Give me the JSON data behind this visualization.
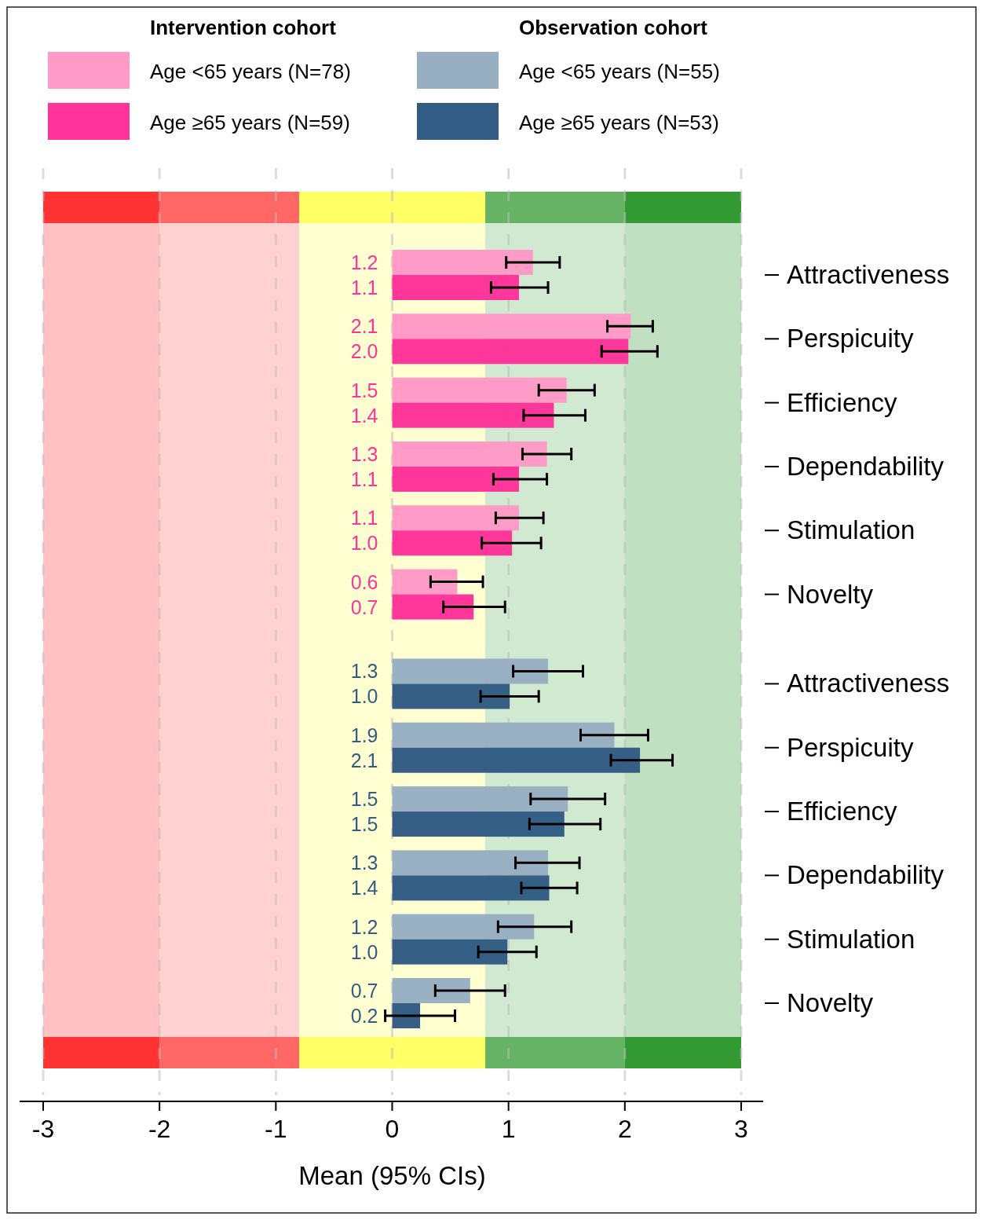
{
  "chart_data": {
    "type": "bar",
    "orientation": "horizontal",
    "xlabel": "Mean (95% CIs)",
    "annotations": [
      "Intervention cohort",
      "Observation cohort"
    ],
    "categories": [
      "Attractiveness",
      "Perspicuity",
      "Efficiency",
      "Dependability",
      "Stimulation",
      "Novelty",
      "Attractiveness",
      "Perspicuity",
      "Efficiency",
      "Dependability",
      "Stimulation",
      "Novelty"
    ],
    "series": [
      {
        "name": "Age <65 years (N=78)",
        "color": "#ff99c6",
        "values": [
          1.21,
          2.05,
          1.5,
          1.33,
          1.09,
          0.56,
          null,
          null,
          null,
          null,
          null,
          null
        ],
        "value_labels": [
          "1.2",
          "2.1",
          "1.5",
          "1.3",
          "1.1",
          "0.6",
          null,
          null,
          null,
          null,
          null,
          null
        ],
        "errors": [
          [
            0.98,
            1.44
          ],
          [
            1.85,
            2.24
          ],
          [
            1.26,
            1.74
          ],
          [
            1.12,
            1.54
          ],
          [
            0.89,
            1.3
          ],
          [
            0.33,
            0.78
          ],
          null,
          null,
          null,
          null,
          null,
          null
        ]
      },
      {
        "name": "Age ≥65 years (N=59)",
        "color": "#ff3399",
        "values": [
          1.09,
          2.03,
          1.39,
          1.09,
          1.03,
          0.7,
          null,
          null,
          null,
          null,
          null,
          null
        ],
        "value_labels": [
          "1.1",
          "2.0",
          "1.4",
          "1.1",
          "1.0",
          "0.7",
          null,
          null,
          null,
          null,
          null,
          null
        ],
        "errors": [
          [
            0.85,
            1.34
          ],
          [
            1.8,
            2.28
          ],
          [
            1.13,
            1.66
          ],
          [
            0.87,
            1.33
          ],
          [
            0.77,
            1.28
          ],
          [
            0.44,
            0.97
          ],
          null,
          null,
          null,
          null,
          null,
          null
        ]
      },
      {
        "name": "Age <65 years (N=55)",
        "color": "#98aec3",
        "values": [
          null,
          null,
          null,
          null,
          null,
          null,
          1.34,
          1.91,
          1.51,
          1.34,
          1.22,
          0.67
        ],
        "value_labels": [
          null,
          null,
          null,
          null,
          null,
          null,
          "1.3",
          "1.9",
          "1.5",
          "1.3",
          "1.2",
          "0.7"
        ],
        "errors": [
          null,
          null,
          null,
          null,
          null,
          null,
          [
            1.04,
            1.64
          ],
          [
            1.62,
            2.2
          ],
          [
            1.19,
            1.83
          ],
          [
            1.06,
            1.61
          ],
          [
            0.91,
            1.54
          ],
          [
            0.37,
            0.97
          ]
        ]
      },
      {
        "name": "Age ≥65 years (N=53)",
        "color": "#335c85",
        "values": [
          null,
          null,
          null,
          null,
          null,
          null,
          1.01,
          2.13,
          1.48,
          1.35,
          0.99,
          0.24
        ],
        "value_labels": [
          null,
          null,
          null,
          null,
          null,
          null,
          "1.0",
          "2.1",
          "1.5",
          "1.4",
          "1.0",
          "0.2"
        ],
        "errors": [
          null,
          null,
          null,
          null,
          null,
          null,
          [
            0.76,
            1.26
          ],
          [
            1.88,
            2.41
          ],
          [
            1.18,
            1.79
          ],
          [
            1.11,
            1.59
          ],
          [
            0.74,
            1.24
          ],
          [
            -0.06,
            0.54
          ]
        ]
      }
    ],
    "bands": [
      {
        "axis": "x",
        "from": -3,
        "to": -2,
        "color": "#ff3333"
      },
      {
        "axis": "x",
        "from": -2,
        "to": -0.8,
        "color": "#ff6666"
      },
      {
        "axis": "x",
        "from": -0.8,
        "to": 0.8,
        "color": "#ffff66"
      },
      {
        "axis": "x",
        "from": 0.8,
        "to": 2,
        "color": "#66b366"
      },
      {
        "axis": "x",
        "from": 2,
        "to": 3,
        "color": "#339933"
      }
    ],
    "xlim": [
      -3,
      3
    ],
    "xticks": [
      -3,
      -2,
      -1,
      0,
      1,
      2,
      3
    ],
    "grid": "x",
    "legend": "top"
  }
}
